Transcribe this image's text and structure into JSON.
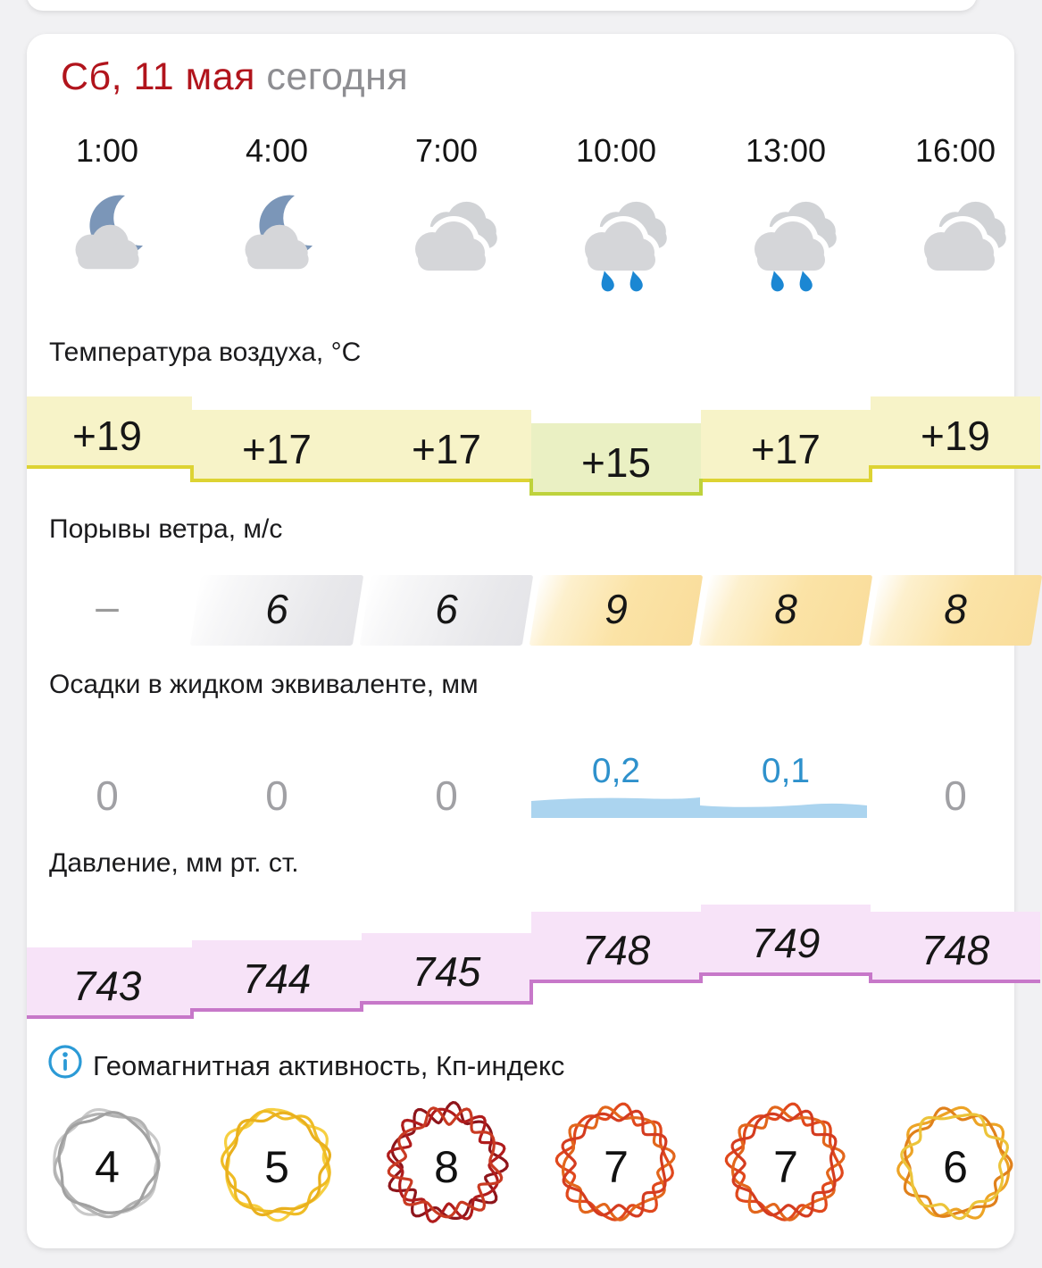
{
  "header": {
    "date": "Сб, 11 мая",
    "today": "сегодня",
    "date_color": "#b1141c",
    "today_color": "#8e8e92"
  },
  "columns": {
    "boundaries": [
      30,
      215,
      405,
      595,
      785,
      975,
      1165
    ],
    "centers": [
      120,
      310,
      500,
      690,
      880,
      1070
    ],
    "times": [
      "1:00",
      "4:00",
      "7:00",
      "10:00",
      "13:00",
      "16:00"
    ],
    "icons": [
      "night-cloudy",
      "night-cloudy",
      "cloudy",
      "rain",
      "rain",
      "cloudy"
    ]
  },
  "temperature": {
    "label": "Температура воздуха, °C",
    "display": [
      "+19",
      "+17",
      "+17",
      "+15",
      "+17",
      "+19"
    ],
    "values": [
      19,
      17,
      17,
      15,
      17,
      19
    ],
    "fill": "#f7f3c8",
    "fill_cool": "#eaf0c3",
    "border": "#ddd333",
    "border_cool": "#bed23c"
  },
  "wind": {
    "label": "Порывы ветра, м/с",
    "display": [
      "–",
      "6",
      "6",
      "9",
      "8",
      "8"
    ],
    "levels": [
      "none",
      "low",
      "low",
      "high",
      "high",
      "high"
    ],
    "low_color": "#e8e8eb",
    "high_color": "#fbe3a6"
  },
  "precipitation": {
    "label": "Осадки в жидком эквиваленте, мм",
    "display": [
      "0",
      "0",
      "0",
      "0,2",
      "0,1",
      "0"
    ],
    "amounts": [
      0,
      0,
      0,
      0.2,
      0.1,
      0
    ],
    "zero_color": "#a0a0a4",
    "value_color": "#2e91cc",
    "bar_color": "#abd4ef"
  },
  "pressure": {
    "label": "Давление, мм рт. ст.",
    "display": [
      "743",
      "744",
      "745",
      "748",
      "749",
      "748"
    ],
    "values": [
      743,
      744,
      745,
      748,
      749,
      748
    ],
    "fill": "#f7e3f8",
    "border": "#c778c9"
  },
  "geomagnetic": {
    "label": "Геомагнитная активность, Кп-индекс",
    "info_color": "#2b9ad6",
    "values": [
      4,
      5,
      8,
      7,
      7,
      6
    ],
    "palettes": [
      [
        "#c9c9c9",
        "#b3b3b3",
        "#a1a1a1"
      ],
      [
        "#f6cf41",
        "#efbc25",
        "#e9b01e"
      ],
      [
        "#8e151b",
        "#b01c1c",
        "#c93a22"
      ],
      [
        "#e0481d",
        "#e2661c",
        "#d43c20"
      ],
      [
        "#e0481d",
        "#e2661c",
        "#d43c20"
      ],
      [
        "#eda426",
        "#e0811c",
        "#ecc43a"
      ]
    ]
  },
  "icon_colors": {
    "cloud": "#d5d6d9",
    "back_cloud": "#d1d3d6",
    "moon": "#7b96b8",
    "drop": "#1b87d3"
  }
}
